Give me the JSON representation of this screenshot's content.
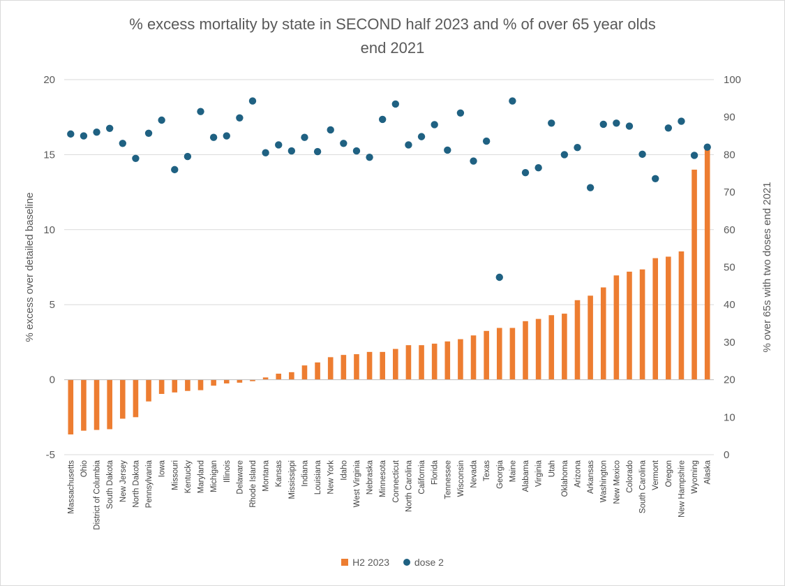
{
  "chart_data": {
    "type": "bar",
    "title_lines": [
      "% excess mortality by state in SECOND  half 2023 and % of over 65 year olds",
      "end 2021"
    ],
    "ylabel_left": "% excess over detailed baseline",
    "ylabel_right": "% over 65s with two doses end 2021",
    "ylim_left": [
      -5,
      20
    ],
    "yticks_left": [
      -5,
      0,
      5,
      10,
      15,
      20
    ],
    "ylim_right": [
      0,
      100
    ],
    "yticks_right": [
      0,
      10,
      20,
      30,
      40,
      50,
      60,
      70,
      80,
      90,
      100
    ],
    "grid": true,
    "legend_position": "bottom",
    "categories": [
      "Massachusetts",
      "Ohio",
      "District of Columbia",
      "South Dakota",
      "New Jersey",
      "North Dakota",
      "Pennsylvania",
      "Iowa",
      "Missouri",
      "Kentucky",
      "Maryland",
      "Michigan",
      "Illinois",
      "Delaware",
      "Rhode Island",
      "Montana",
      "Kansas",
      "Mississippi",
      "Indiana",
      "Louisiana",
      "New York",
      "Idaho",
      "West Virginia",
      "Nebraska",
      "Minnesota",
      "Connecticut",
      "North Carolina",
      "California",
      "Florida",
      "Tennessee",
      "Wisconsin",
      "Nevada",
      "Texas",
      "Georgia",
      "Maine",
      "Alabama",
      "Virginia",
      "Utah",
      "Oklahoma",
      "Arizona",
      "Arkansas",
      "Washington",
      "New Mexico",
      "Colorado",
      "South Carolina",
      "Vermont",
      "Oregon",
      "New Hampshire",
      "Wyoming",
      "Alaska"
    ],
    "series": [
      {
        "name": "H2 2023",
        "type": "bar",
        "axis": "left",
        "color": "#ED7D31",
        "values": [
          -3.65,
          -3.4,
          -3.35,
          -3.3,
          -2.6,
          -2.5,
          -1.45,
          -0.95,
          -0.85,
          -0.75,
          -0.7,
          -0.4,
          -0.25,
          -0.2,
          -0.1,
          0.15,
          0.4,
          0.5,
          0.95,
          1.15,
          1.5,
          1.65,
          1.7,
          1.85,
          1.85,
          2.05,
          2.3,
          2.3,
          2.4,
          2.55,
          2.7,
          2.95,
          3.25,
          3.45,
          3.45,
          3.9,
          4.05,
          4.3,
          4.4,
          5.3,
          5.6,
          6.15,
          6.95,
          7.2,
          7.35,
          8.1,
          8.2,
          8.55,
          14.0,
          15.35
        ]
      },
      {
        "name": "dose 2",
        "type": "scatter",
        "axis": "right",
        "color": "#1F6182",
        "values": [
          85.5,
          85.0,
          86.0,
          87.0,
          83.0,
          79.0,
          85.7,
          89.2,
          76.0,
          79.5,
          91.5,
          84.6,
          85.0,
          89.8,
          94.3,
          80.5,
          82.6,
          81.0,
          84.6,
          80.8,
          86.6,
          83.0,
          81.0,
          79.3,
          89.4,
          93.5,
          82.6,
          84.8,
          88.0,
          81.2,
          91.1,
          78.3,
          83.6,
          47.3,
          94.3,
          75.2,
          76.5,
          88.4,
          80.0,
          81.9,
          71.2,
          88.1,
          88.4,
          87.6,
          80.1,
          73.6,
          87.1,
          88.9,
          79.8,
          82.0
        ]
      }
    ]
  }
}
